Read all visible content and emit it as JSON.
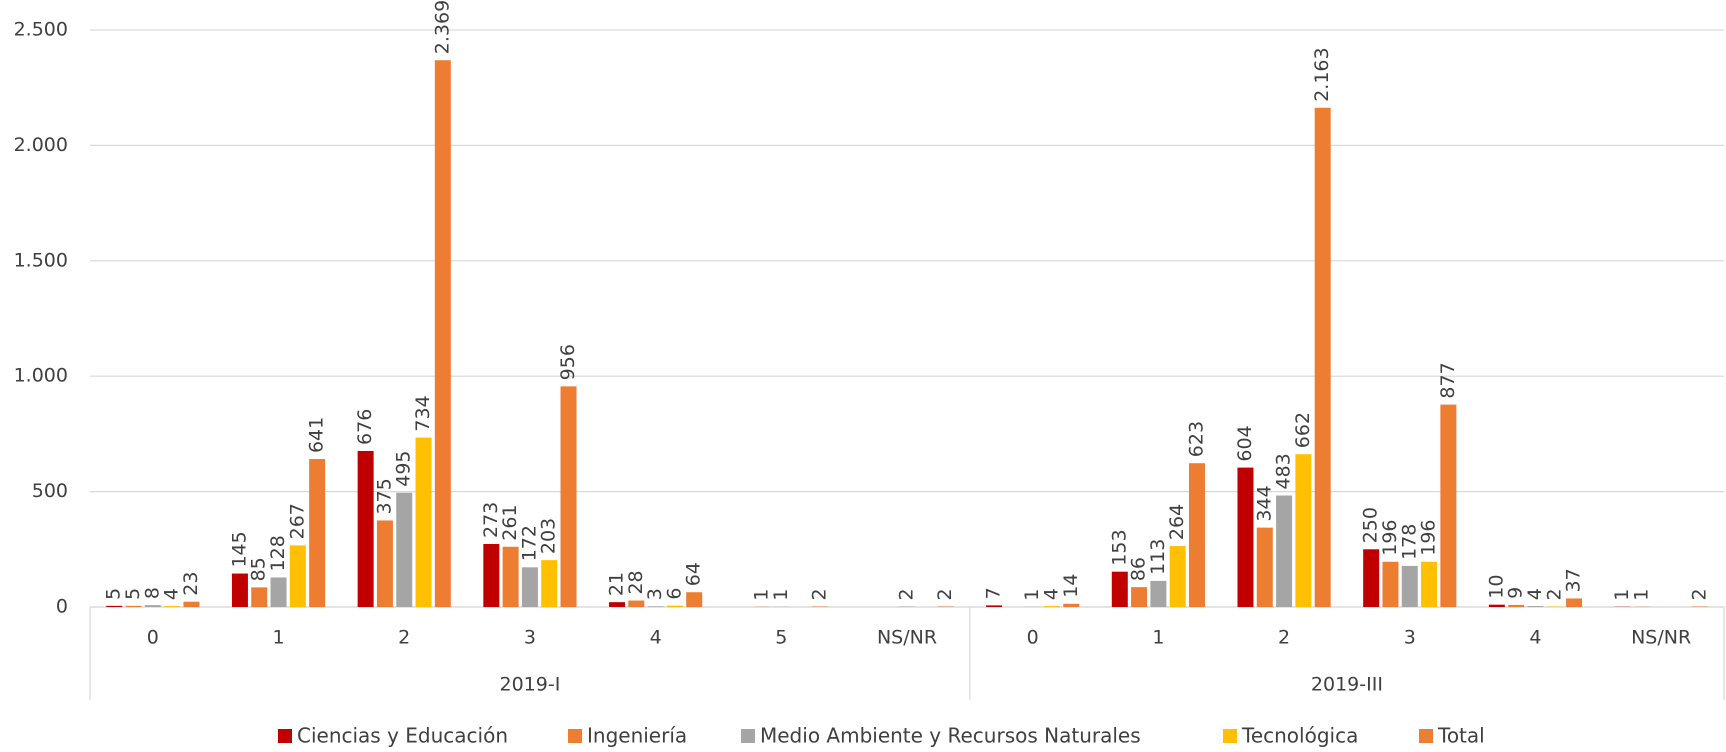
{
  "chart_data": {
    "type": "bar",
    "groups": [
      {
        "name": "2019-I",
        "categories": [
          "0",
          "1",
          "2",
          "3",
          "4",
          "5",
          "NS/NR"
        ]
      },
      {
        "name": "2019-III",
        "categories": [
          "0",
          "1",
          "2",
          "3",
          "4",
          "NS/NR"
        ]
      }
    ],
    "series": [
      {
        "name": "Ciencias y Educación",
        "color": "#c00000",
        "values": [
          5,
          145,
          676,
          273,
          21,
          null,
          null,
          7,
          153,
          604,
          250,
          10,
          1
        ],
        "value_labels": [
          "5",
          "145",
          "676",
          "273",
          "21",
          null,
          null,
          "7",
          "153",
          "604",
          "250",
          "10",
          "1"
        ]
      },
      {
        "name": "Ingeniería",
        "color": "#ed7d31",
        "values": [
          5,
          85,
          375,
          261,
          28,
          1,
          null,
          null,
          86,
          344,
          196,
          9,
          1
        ],
        "value_labels": [
          "5",
          "85",
          "375",
          "261",
          "28",
          "1",
          null,
          null,
          "86",
          "344",
          "196",
          "9",
          "1"
        ]
      },
      {
        "name": "Medio Ambiente y Recursos Naturales",
        "color": "#a5a5a5",
        "values": [
          8,
          128,
          495,
          172,
          3,
          1,
          2,
          1,
          113,
          483,
          178,
          4,
          null
        ],
        "value_labels": [
          "8",
          "128",
          "495",
          "172",
          "3",
          "1",
          "2",
          "1",
          "113",
          "483",
          "178",
          "4",
          null
        ]
      },
      {
        "name": "Tecnológica",
        "color": "#ffc000",
        "values": [
          4,
          267,
          734,
          203,
          6,
          null,
          null,
          4,
          264,
          662,
          196,
          2,
          null
        ],
        "value_labels": [
          "4",
          "267",
          "734",
          "203",
          "6",
          null,
          null,
          "4",
          "264",
          "662",
          "196",
          "2",
          null
        ]
      },
      {
        "name": "Total",
        "color": "#ed7d31",
        "values": [
          23,
          641,
          2369,
          956,
          64,
          2,
          2,
          14,
          623,
          2163,
          877,
          37,
          2
        ],
        "value_labels": [
          "23",
          "641",
          "2.369",
          "956",
          "64",
          "2",
          "2",
          "14",
          "623",
          "2.163",
          "877",
          "37",
          "2"
        ]
      }
    ],
    "ylim": [
      0,
      2500
    ],
    "yticks": [
      0,
      500,
      {
        "value": 1000,
        "label": "1.000"
      },
      {
        "value": 1500,
        "label": "1.500"
      },
      {
        "value": 2000,
        "label": "2.000"
      },
      {
        "value": 2500,
        "label": "2.500"
      }
    ],
    "grid": true,
    "legend": "bottom"
  }
}
